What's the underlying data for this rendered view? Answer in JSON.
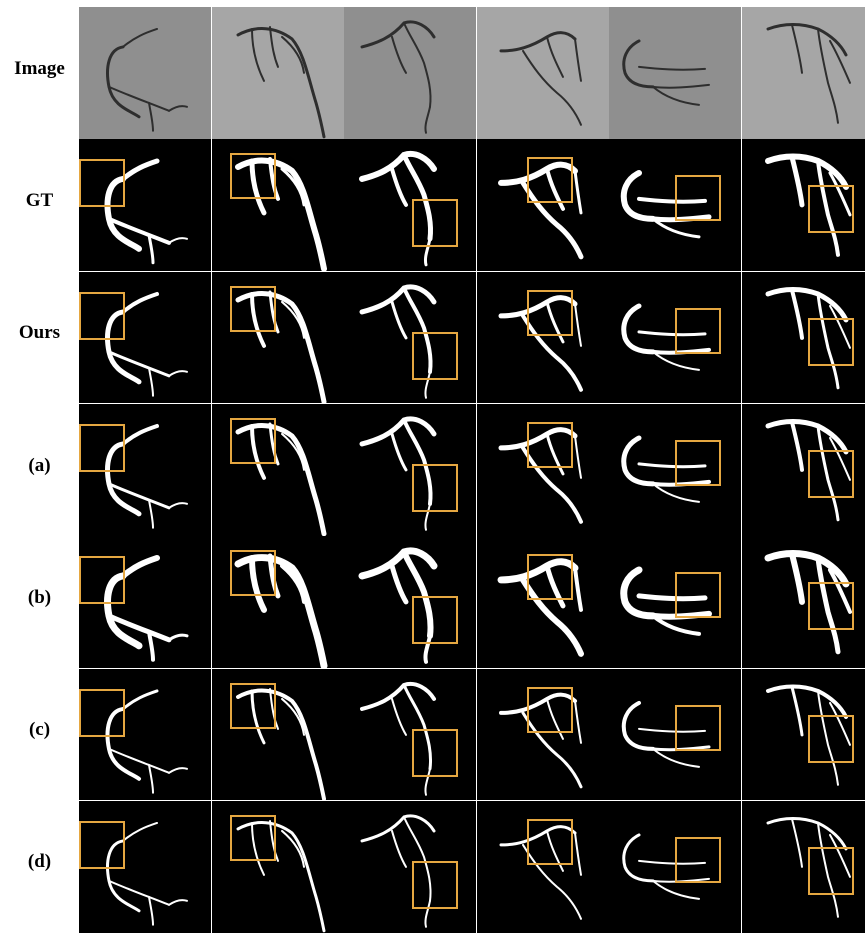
{
  "rows": [
    {
      "label": "Image",
      "kind": "image"
    },
    {
      "label": "GT",
      "kind": "mask"
    },
    {
      "label": "Ours",
      "kind": "mask"
    },
    {
      "label": "(a)",
      "kind": "mask"
    },
    {
      "label": "(b)",
      "kind": "mask"
    },
    {
      "label": "(c)",
      "kind": "mask"
    },
    {
      "label": "(d)",
      "kind": "mask"
    }
  ],
  "columns": 6,
  "colors": {
    "background": "#000000",
    "vessel": "#ffffff",
    "highlight_box": "#e5a741",
    "angiogram_tone": "#9a9a9a"
  }
}
